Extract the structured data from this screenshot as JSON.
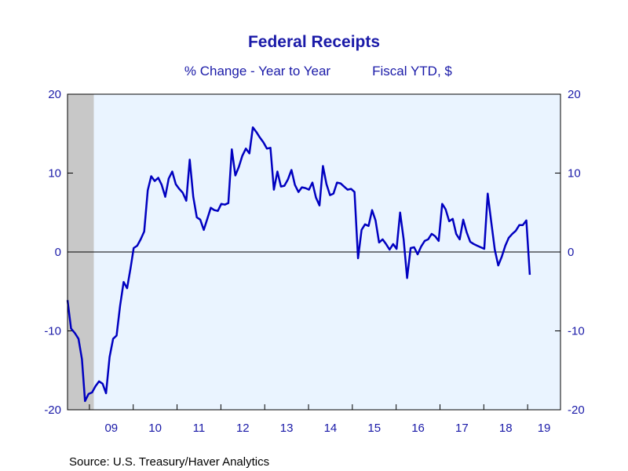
{
  "chart_data": {
    "type": "line",
    "title": "Federal Receipts",
    "subtitle_left": "% Change - Year to Year",
    "subtitle_right": "Fiscal YTD, $",
    "source": "Source:  U.S. Treasury/Haver Analytics",
    "ylim": [
      -20,
      20
    ],
    "xlim": [
      2008.5,
      2019.75
    ],
    "y_ticks": [
      {
        "value": 20,
        "label": "20"
      },
      {
        "value": 10,
        "label": "10"
      },
      {
        "value": 0,
        "label": "0"
      },
      {
        "value": -10,
        "label": "-10"
      },
      {
        "value": -20,
        "label": "-20"
      }
    ],
    "x_ticks": [
      "09",
      "10",
      "11",
      "12",
      "13",
      "14",
      "15",
      "16",
      "17",
      "18",
      "19"
    ],
    "x_tick_years": [
      2009,
      2010,
      2011,
      2012,
      2013,
      2014,
      2015,
      2016,
      2017,
      2018,
      2019
    ],
    "zero_line": true,
    "grid": false,
    "recession": {
      "start": 2008.5,
      "end": 2009.1
    },
    "colors": {
      "line": "#0000c0",
      "text": "#1a1aa8",
      "plot_bg": "#eaf4ff",
      "recession": "#c8c8c8",
      "frame": "#000000"
    },
    "series": [
      {
        "color": "#0000c0",
        "points": [
          [
            2008.5,
            -6.1
          ],
          [
            2008.58,
            -9.7
          ],
          [
            2008.67,
            -10.3
          ],
          [
            2008.75,
            -11.0
          ],
          [
            2008.83,
            -13.6
          ],
          [
            2008.9,
            -18.9
          ],
          [
            2008.98,
            -18.0
          ],
          [
            2009.06,
            -17.8
          ],
          [
            2009.14,
            -17.0
          ],
          [
            2009.22,
            -16.4
          ],
          [
            2009.3,
            -16.7
          ],
          [
            2009.38,
            -17.9
          ],
          [
            2009.46,
            -13.3
          ],
          [
            2009.54,
            -11.0
          ],
          [
            2009.62,
            -10.6
          ],
          [
            2009.7,
            -6.8
          ],
          [
            2009.78,
            -3.8
          ],
          [
            2009.86,
            -4.6
          ],
          [
            2009.94,
            -2.0
          ],
          [
            2010.01,
            0.5
          ],
          [
            2010.09,
            0.8
          ],
          [
            2010.17,
            1.6
          ],
          [
            2010.25,
            2.6
          ],
          [
            2010.33,
            7.8
          ],
          [
            2010.41,
            9.6
          ],
          [
            2010.49,
            9.0
          ],
          [
            2010.57,
            9.4
          ],
          [
            2010.65,
            8.5
          ],
          [
            2010.73,
            7.0
          ],
          [
            2010.81,
            9.3
          ],
          [
            2010.89,
            10.2
          ],
          [
            2010.97,
            8.6
          ],
          [
            2011.05,
            8.0
          ],
          [
            2011.13,
            7.5
          ],
          [
            2011.21,
            6.5
          ],
          [
            2011.29,
            11.7
          ],
          [
            2011.37,
            7.0
          ],
          [
            2011.45,
            4.4
          ],
          [
            2011.53,
            4.1
          ],
          [
            2011.61,
            2.8
          ],
          [
            2011.69,
            4.2
          ],
          [
            2011.77,
            5.6
          ],
          [
            2011.85,
            5.3
          ],
          [
            2011.93,
            5.2
          ],
          [
            2012.01,
            6.1
          ],
          [
            2012.09,
            6.0
          ],
          [
            2012.17,
            6.2
          ],
          [
            2012.25,
            13.0
          ],
          [
            2012.33,
            9.7
          ],
          [
            2012.41,
            10.8
          ],
          [
            2012.49,
            12.2
          ],
          [
            2012.57,
            13.1
          ],
          [
            2012.65,
            12.5
          ],
          [
            2012.73,
            15.8
          ],
          [
            2012.81,
            15.2
          ],
          [
            2012.89,
            14.5
          ],
          [
            2012.97,
            13.9
          ],
          [
            2013.05,
            13.1
          ],
          [
            2013.13,
            13.2
          ],
          [
            2013.21,
            7.9
          ],
          [
            2013.29,
            10.2
          ],
          [
            2013.37,
            8.3
          ],
          [
            2013.45,
            8.4
          ],
          [
            2013.53,
            9.2
          ],
          [
            2013.61,
            10.4
          ],
          [
            2013.69,
            8.5
          ],
          [
            2013.77,
            7.6
          ],
          [
            2013.85,
            8.2
          ],
          [
            2013.93,
            8.1
          ],
          [
            2014.01,
            7.9
          ],
          [
            2014.09,
            8.8
          ],
          [
            2014.17,
            6.9
          ],
          [
            2014.25,
            5.9
          ],
          [
            2014.33,
            10.9
          ],
          [
            2014.41,
            8.6
          ],
          [
            2014.49,
            7.2
          ],
          [
            2014.57,
            7.4
          ],
          [
            2014.65,
            8.8
          ],
          [
            2014.73,
            8.7
          ],
          [
            2014.81,
            8.3
          ],
          [
            2014.89,
            7.9
          ],
          [
            2014.97,
            8.0
          ],
          [
            2015.05,
            7.6
          ],
          [
            2015.13,
            -0.8
          ],
          [
            2015.21,
            2.8
          ],
          [
            2015.29,
            3.5
          ],
          [
            2015.37,
            3.3
          ],
          [
            2015.45,
            5.3
          ],
          [
            2015.53,
            4.0
          ],
          [
            2015.61,
            1.2
          ],
          [
            2015.69,
            1.6
          ],
          [
            2015.77,
            1.0
          ],
          [
            2015.85,
            0.3
          ],
          [
            2015.93,
            1.0
          ],
          [
            2016.01,
            0.4
          ],
          [
            2016.09,
            5.0
          ],
          [
            2016.17,
            1.6
          ],
          [
            2016.25,
            -3.3
          ],
          [
            2016.33,
            0.5
          ],
          [
            2016.41,
            0.6
          ],
          [
            2016.49,
            -0.3
          ],
          [
            2016.57,
            0.7
          ],
          [
            2016.65,
            1.4
          ],
          [
            2016.73,
            1.6
          ],
          [
            2016.81,
            2.3
          ],
          [
            2016.89,
            2.0
          ],
          [
            2016.97,
            1.4
          ],
          [
            2017.05,
            6.1
          ],
          [
            2017.13,
            5.4
          ],
          [
            2017.21,
            3.9
          ],
          [
            2017.29,
            4.2
          ],
          [
            2017.37,
            2.3
          ],
          [
            2017.45,
            1.6
          ],
          [
            2017.53,
            4.1
          ],
          [
            2017.61,
            2.5
          ],
          [
            2017.69,
            1.3
          ],
          [
            2017.77,
            1.0
          ],
          [
            2017.85,
            0.8
          ],
          [
            2017.93,
            0.6
          ],
          [
            2018.01,
            0.4
          ],
          [
            2018.09,
            7.4
          ],
          [
            2018.17,
            3.8
          ],
          [
            2018.25,
            0.3
          ],
          [
            2018.33,
            -1.7
          ],
          [
            2018.41,
            -0.6
          ],
          [
            2018.49,
            0.8
          ],
          [
            2018.57,
            1.8
          ],
          [
            2018.65,
            2.3
          ],
          [
            2018.73,
            2.7
          ],
          [
            2018.81,
            3.4
          ],
          [
            2018.89,
            3.4
          ],
          [
            2018.97,
            4.0
          ],
          [
            2019.05,
            -2.9
          ]
        ]
      }
    ]
  }
}
